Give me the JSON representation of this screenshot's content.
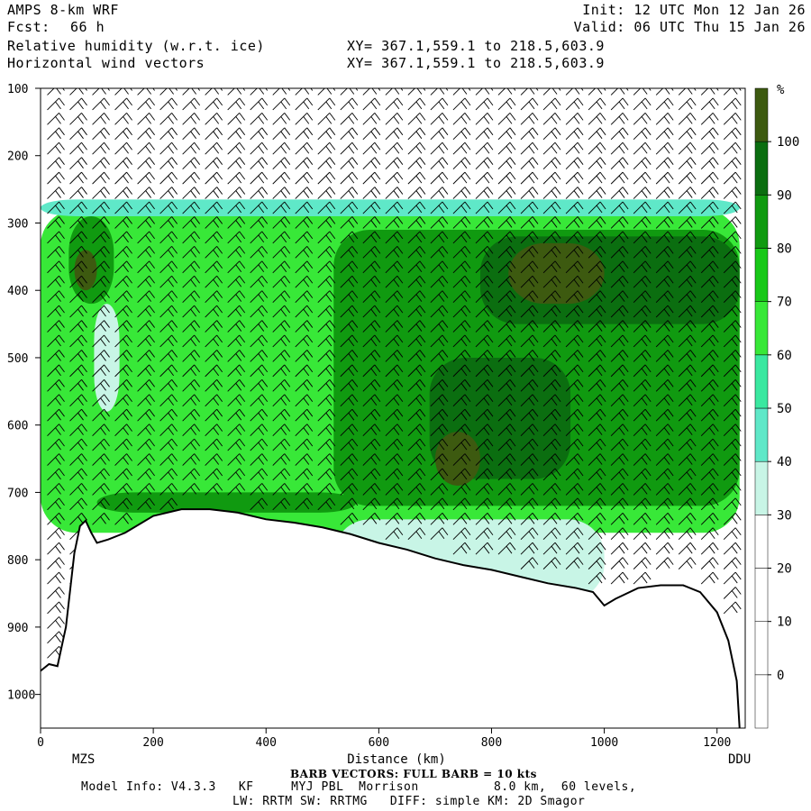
{
  "header": {
    "model": "AMPS 8-km WRF",
    "fcst_label": "Fcst:",
    "fcst_value": "66 h",
    "field1": "Relative humidity (w.r.t. ice)",
    "field2": "Horizontal wind vectors",
    "init": "Init: 12 UTC Mon 12 Jan 26",
    "valid": "Valid: 06 UTC Thu 15 Jan 26",
    "xy1": "XY= 367.1,559.1 to 218.5,603.9",
    "xy2": "XY= 367.1,559.1 to 218.5,603.9"
  },
  "footer": {
    "barb_note": "BARB VECTORS: FULL BARB = 10 kts",
    "model_info_1": "Model Info: V4.3.3   KF     MYJ PBL  Morrison          8.0 km,  60 levels,",
    "model_info_2": "LW: RRTM SW: RRTMG   DIFF: simple KM: 2D Smagor",
    "left_station": "MZS",
    "right_station": "DDU"
  },
  "chart_data": {
    "type": "heatmap",
    "title": "Relative humidity (w.r.t. ice)",
    "xlabel": "Distance (km)",
    "ylabel": "",
    "xlim": [
      0,
      1250
    ],
    "ylim": [
      1050,
      100
    ],
    "x_ticks": [
      0,
      200,
      400,
      600,
      800,
      1000,
      1200
    ],
    "y_ticks": [
      100,
      200,
      300,
      400,
      500,
      600,
      700,
      800,
      900,
      1000
    ],
    "colorbar": {
      "unit": "%",
      "ticks": [
        0,
        10,
        20,
        30,
        40,
        50,
        60,
        70,
        80,
        90,
        100
      ],
      "levels": [
        -10,
        0,
        10,
        20,
        30,
        40,
        50,
        60,
        70,
        80,
        90,
        100,
        110
      ],
      "colors": [
        "#ffffff",
        "#ffffff",
        "#ffffff",
        "#ffffff",
        "#c8f5e6",
        "#5fe8c8",
        "#3ae8a0",
        "#38e838",
        "#18c818",
        "#109a10",
        "#0b6e10",
        "#3d5a10"
      ]
    },
    "terrain": [
      [
        0,
        965
      ],
      [
        15,
        955
      ],
      [
        30,
        958
      ],
      [
        45,
        900
      ],
      [
        60,
        790
      ],
      [
        70,
        750
      ],
      [
        80,
        742
      ],
      [
        90,
        760
      ],
      [
        100,
        775
      ],
      [
        120,
        770
      ],
      [
        150,
        760
      ],
      [
        200,
        735
      ],
      [
        250,
        725
      ],
      [
        300,
        725
      ],
      [
        350,
        730
      ],
      [
        400,
        740
      ],
      [
        450,
        745
      ],
      [
        500,
        752
      ],
      [
        550,
        762
      ],
      [
        600,
        775
      ],
      [
        650,
        785
      ],
      [
        700,
        798
      ],
      [
        750,
        808
      ],
      [
        800,
        815
      ],
      [
        850,
        825
      ],
      [
        900,
        835
      ],
      [
        950,
        842
      ],
      [
        980,
        848
      ],
      [
        1000,
        868
      ],
      [
        1020,
        858
      ],
      [
        1060,
        842
      ],
      [
        1100,
        838
      ],
      [
        1140,
        838
      ],
      [
        1170,
        848
      ],
      [
        1200,
        878
      ],
      [
        1220,
        920
      ],
      [
        1235,
        980
      ],
      [
        1240,
        1050
      ]
    ],
    "rh_features": [
      {
        "x0": 0,
        "x1": 1240,
        "p_top": 280,
        "p_bot": 760,
        "rh": 60
      },
      {
        "x0": 0,
        "x1": 1240,
        "p_top": 265,
        "p_bot": 290,
        "rh": 45
      },
      {
        "x0": 50,
        "x1": 130,
        "p_top": 290,
        "p_bot": 420,
        "rh": 85
      },
      {
        "x0": 60,
        "x1": 100,
        "p_top": 340,
        "p_bot": 400,
        "rh": 100
      },
      {
        "x0": 95,
        "x1": 140,
        "p_top": 420,
        "p_bot": 580,
        "rh": 30
      },
      {
        "x0": 520,
        "x1": 1240,
        "p_top": 310,
        "p_bot": 720,
        "rh": 80
      },
      {
        "x0": 780,
        "x1": 1240,
        "p_top": 320,
        "p_bot": 450,
        "rh": 90
      },
      {
        "x0": 830,
        "x1": 1000,
        "p_top": 330,
        "p_bot": 420,
        "rh": 100
      },
      {
        "x0": 690,
        "x1": 940,
        "p_top": 500,
        "p_bot": 680,
        "rh": 90
      },
      {
        "x0": 700,
        "x1": 780,
        "p_top": 610,
        "p_bot": 690,
        "rh": 100
      },
      {
        "x0": 100,
        "x1": 560,
        "p_top": 700,
        "p_bot": 730,
        "rh": 85
      },
      {
        "x0": 520,
        "x1": 1000,
        "p_top": 740,
        "p_bot": 860,
        "rh": 35
      }
    ]
  }
}
